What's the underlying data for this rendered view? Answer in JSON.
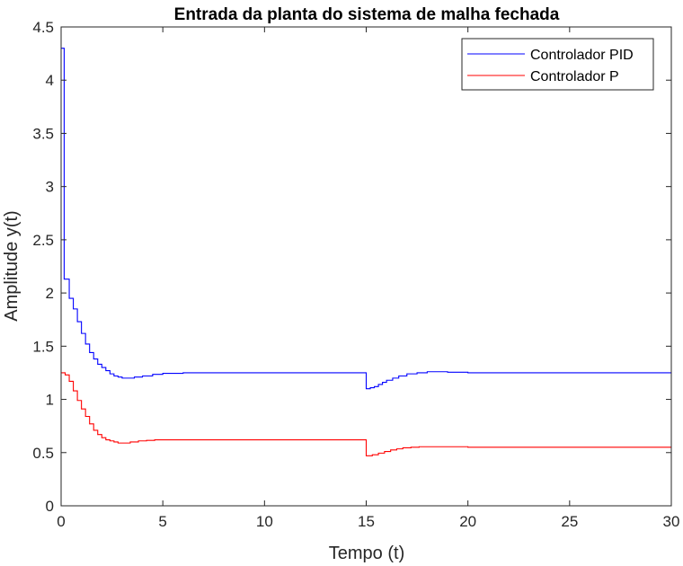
{
  "chart_data": {
    "type": "line",
    "title": "Entrada da planta do sistema de malha fechada",
    "xlabel": "Tempo (t)",
    "ylabel": "Amplitude y(t)",
    "xlim": [
      0,
      30
    ],
    "ylim": [
      0,
      4.5
    ],
    "xticks": [
      0,
      5,
      10,
      15,
      20,
      25,
      30
    ],
    "yticks": [
      0,
      0.5,
      1,
      1.5,
      2,
      2.5,
      3,
      3.5,
      4,
      4.5
    ],
    "xtick_labels": [
      "0",
      "5",
      "10",
      "15",
      "20",
      "25",
      "30"
    ],
    "ytick_labels": [
      "0",
      "0.5",
      "1",
      "1.5",
      "2",
      "2.5",
      "3",
      "3.5",
      "4",
      "4.5"
    ],
    "grid": false,
    "legend_position": "top-right",
    "step_plot": true,
    "series": [
      {
        "name": "Controlador PID",
        "color": "#0000ff",
        "x": [
          0,
          0.15,
          0.2,
          0.4,
          0.6,
          0.8,
          1.0,
          1.2,
          1.4,
          1.6,
          1.8,
          2.0,
          2.2,
          2.4,
          2.6,
          2.8,
          3.0,
          3.2,
          3.6,
          4.0,
          4.5,
          5.0,
          6.0,
          7.0,
          8.0,
          10.0,
          12.0,
          14.9,
          15.0,
          15.2,
          15.4,
          15.6,
          15.8,
          16.0,
          16.3,
          16.6,
          17.0,
          17.5,
          18.0,
          19.0,
          20.0,
          22.0,
          25.0,
          30.0
        ],
        "y": [
          4.3,
          2.13,
          2.13,
          1.95,
          1.85,
          1.73,
          1.62,
          1.52,
          1.44,
          1.38,
          1.33,
          1.3,
          1.27,
          1.24,
          1.22,
          1.21,
          1.2,
          1.2,
          1.21,
          1.22,
          1.235,
          1.245,
          1.25,
          1.25,
          1.25,
          1.25,
          1.25,
          1.25,
          1.1,
          1.11,
          1.12,
          1.14,
          1.16,
          1.18,
          1.2,
          1.22,
          1.24,
          1.25,
          1.26,
          1.255,
          1.25,
          1.25,
          1.25,
          1.25
        ]
      },
      {
        "name": "Controlador P",
        "color": "#ff0000",
        "x": [
          0,
          0.2,
          0.4,
          0.6,
          0.8,
          1.0,
          1.2,
          1.4,
          1.6,
          1.8,
          2.0,
          2.2,
          2.4,
          2.6,
          2.8,
          3.0,
          3.4,
          3.8,
          4.2,
          4.6,
          5.0,
          6.0,
          8.0,
          10.0,
          12.0,
          14.9,
          15.0,
          15.3,
          15.6,
          15.9,
          16.2,
          16.5,
          16.8,
          17.2,
          17.6,
          18.0,
          19.0,
          20.0,
          22.0,
          25.0,
          30.0
        ],
        "y": [
          1.25,
          1.23,
          1.17,
          1.08,
          0.99,
          0.91,
          0.84,
          0.77,
          0.71,
          0.67,
          0.64,
          0.62,
          0.61,
          0.6,
          0.59,
          0.59,
          0.6,
          0.61,
          0.615,
          0.62,
          0.62,
          0.62,
          0.62,
          0.62,
          0.62,
          0.62,
          0.47,
          0.48,
          0.495,
          0.51,
          0.525,
          0.535,
          0.545,
          0.55,
          0.555,
          0.555,
          0.555,
          0.55,
          0.55,
          0.55,
          0.55
        ]
      }
    ]
  }
}
